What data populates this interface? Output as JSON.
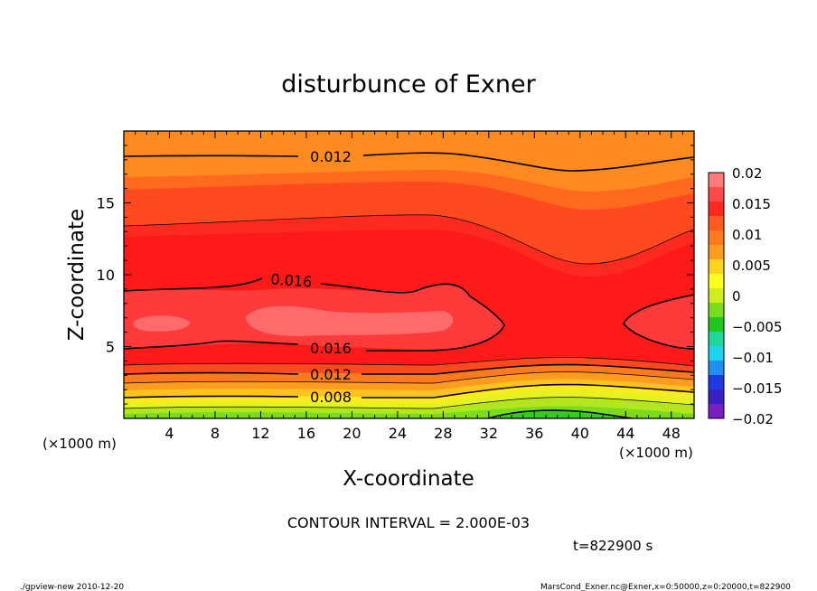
{
  "chart_data": {
    "type": "contour",
    "title": "disturbunce of Exner",
    "xlabel": "X-coordinate",
    "ylabel": "Z-coordinate",
    "x_unit_left": "(×1000 m)",
    "x_unit_right": "(×1000 m)",
    "xlim": [
      0,
      50
    ],
    "ylim": [
      0,
      20
    ],
    "x_ticks": [
      "4",
      "8",
      "12",
      "16",
      "20",
      "24",
      "28",
      "32",
      "36",
      "40",
      "44",
      "48"
    ],
    "x_tick_values": [
      4,
      8,
      12,
      16,
      20,
      24,
      28,
      32,
      36,
      40,
      44,
      48
    ],
    "y_ticks": [
      "5",
      "10",
      "15"
    ],
    "y_tick_values": [
      5,
      10,
      15
    ],
    "contour_labels": [
      {
        "text": "0.012",
        "x": 18,
        "z": 18.2
      },
      {
        "text": "0.016",
        "x": 13.5,
        "z": 9.5
      },
      {
        "text": "0.016",
        "x": 18,
        "z": 4.8
      },
      {
        "text": "0.012",
        "x": 18,
        "z": 3.0
      },
      {
        "text": "0.008",
        "x": 18,
        "z": 1.5
      }
    ],
    "contour_interval": "CONTOUR INTERVAL = 2.000E-03",
    "time": "t=822900 s",
    "colorbar": {
      "labels": [
        "0.02",
        "0.015",
        "0.01",
        "0.005",
        "0",
        "−0.005",
        "−0.01",
        "−0.015",
        "−0.02"
      ],
      "levels": [
        0.02,
        0.015,
        0.01,
        0.005,
        0,
        -0.005,
        -0.01,
        -0.015,
        -0.02
      ]
    }
  },
  "colors": {
    "levels": [
      "#7a1fc2",
      "#3a1fc2",
      "#1f3ae0",
      "#1f8ff0",
      "#1fd2f0",
      "#1fd79a",
      "#1fc81f",
      "#7bdc1f",
      "#d2ee1f",
      "#ffff1f",
      "#ffd21f",
      "#ff9c1f",
      "#ff7a1f",
      "#ff5a1f",
      "#ff2a1f",
      "#ff4a4a",
      "#ff7a7a"
    ]
  },
  "footer": {
    "left": "./gpview-new   2010-12-20",
    "right": "MarsCond_Exner.nc@Exner,x=0:50000,z=0:20000,t=822900"
  }
}
